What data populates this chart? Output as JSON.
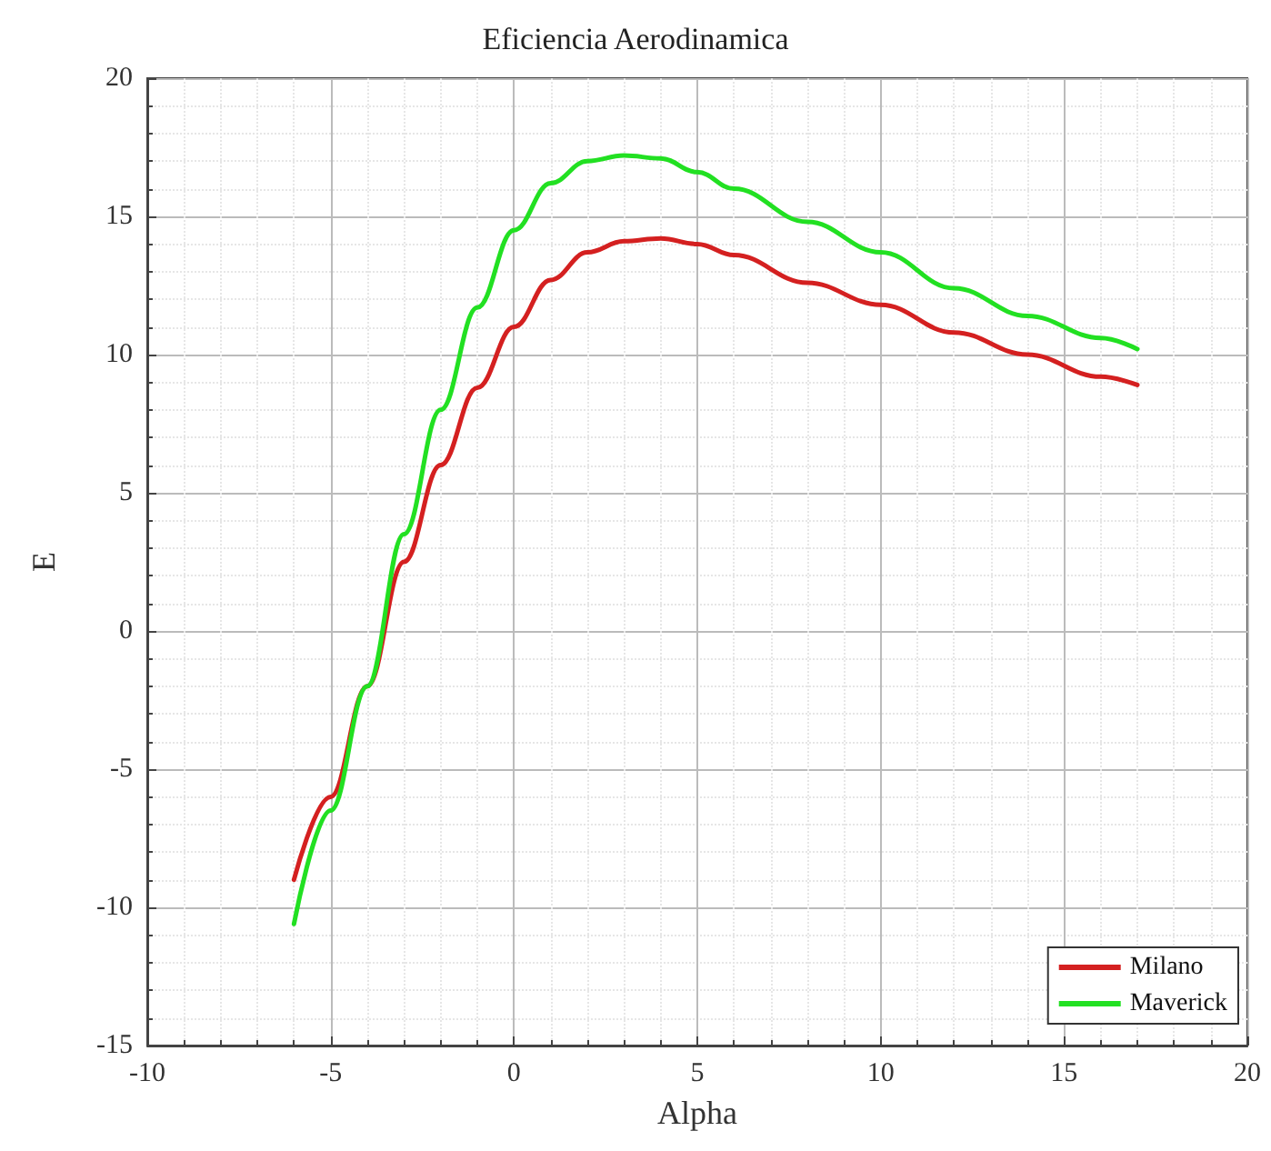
{
  "chart_data": {
    "type": "line",
    "title": "Eficiencia Aerodinamica",
    "xlabel": "Alpha",
    "ylabel": "E",
    "x": [
      -6,
      -5,
      -4,
      -3,
      -2,
      -1,
      0,
      1,
      2,
      3,
      4,
      5,
      6,
      8,
      10,
      12,
      14,
      16,
      17
    ],
    "series": [
      {
        "name": "Milano",
        "color": "#d42020",
        "values": [
          -9,
          -6,
          -2,
          2.5,
          6,
          8.8,
          11,
          12.7,
          13.7,
          14.1,
          14.2,
          14,
          13.6,
          12.6,
          11.8,
          10.8,
          10,
          9.2,
          8.9
        ]
      },
      {
        "name": "Maverick",
        "color": "#22e022",
        "values": [
          -10.6,
          -6.5,
          -2,
          3.5,
          8,
          11.7,
          14.5,
          16.2,
          17,
          17.2,
          17.1,
          16.6,
          16,
          14.8,
          13.7,
          12.4,
          11.4,
          10.6,
          10.2
        ]
      }
    ],
    "xlim": [
      -10,
      20
    ],
    "xticks": [
      -10,
      -5,
      0,
      5,
      10,
      15,
      20
    ],
    "ylim": [
      -15,
      20
    ],
    "yticks": [
      -15,
      -10,
      -5,
      0,
      5,
      10,
      15,
      20
    ],
    "grid": true,
    "legend": "bottom right",
    "marker": "none",
    "line_style": "solid"
  }
}
